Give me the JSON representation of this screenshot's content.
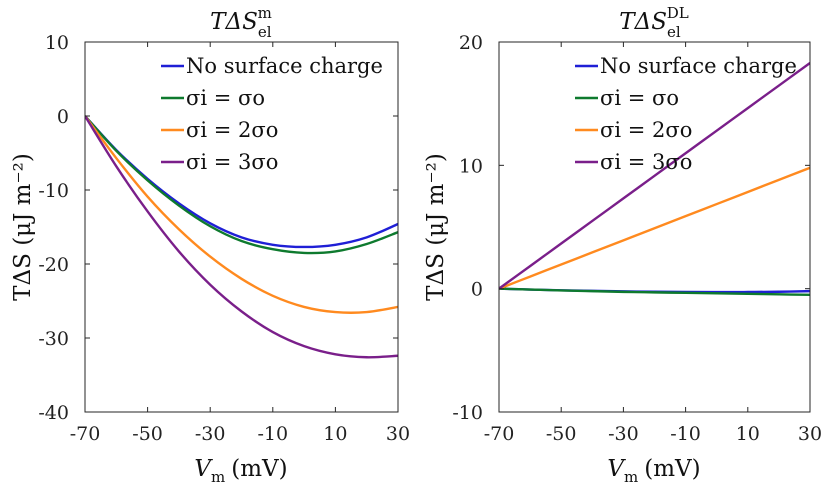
{
  "chart_data": [
    {
      "type": "line",
      "title": "TΔS_el^m",
      "title_main": "TΔS",
      "title_sub": "el",
      "title_sup": "m",
      "xlabel": "V_m (mV)",
      "xlabel_main": "V",
      "xlabel_sub": "m",
      "xlabel_unit": "(mV)",
      "ylabel": "TΔS (μJ m⁻²)",
      "xlim": [
        -70,
        30
      ],
      "ylim": [
        -40,
        10
      ],
      "x_ticks": [
        "-70",
        "-50",
        "-30",
        "-10",
        "10",
        "30"
      ],
      "y_ticks": [
        "10",
        "0",
        "-10",
        "-20",
        "-30",
        "-40"
      ],
      "legend_position": "top-right",
      "x": [
        -70,
        -60,
        -50,
        -40,
        -30,
        -20,
        -10,
        0,
        10,
        20,
        30
      ],
      "series": [
        {
          "name": "No surface charge",
          "color": "#1f1fd6",
          "values": [
            0,
            -4.6,
            -8.5,
            -11.8,
            -14.5,
            -16.4,
            -17.4,
            -17.7,
            -17.4,
            -16.4,
            -14.6
          ]
        },
        {
          "name": "σi = σo",
          "color": "#0e7a2e",
          "values": [
            0,
            -4.7,
            -8.7,
            -12.1,
            -14.9,
            -16.9,
            -18.0,
            -18.5,
            -18.3,
            -17.3,
            -15.7
          ]
        },
        {
          "name": "σi = 2σo",
          "color": "#ff8a1f",
          "values": [
            0,
            -5.7,
            -10.9,
            -15.3,
            -19.0,
            -22.0,
            -24.3,
            -25.8,
            -26.5,
            -26.5,
            -25.8
          ]
        },
        {
          "name": "σi = 3σo",
          "color": "#7a1f8a",
          "values": [
            0,
            -6.8,
            -12.9,
            -18.3,
            -22.8,
            -26.4,
            -29.2,
            -31.1,
            -32.2,
            -32.6,
            -32.4
          ]
        }
      ]
    },
    {
      "type": "line",
      "title": "TΔS_el^DL",
      "title_main": "TΔS",
      "title_sub": "el",
      "title_sup": "DL",
      "xlabel": "V_m (mV)",
      "xlabel_main": "V",
      "xlabel_sub": "m",
      "xlabel_unit": "(mV)",
      "ylabel": "TΔS (μJ m⁻²)",
      "xlim": [
        -70,
        30
      ],
      "ylim": [
        -10,
        20
      ],
      "x_ticks": [
        "-70",
        "-50",
        "-30",
        "-10",
        "10",
        "30"
      ],
      "y_ticks": [
        "20",
        "10",
        "0",
        "-10"
      ],
      "legend_position": "top-right",
      "x": [
        -70,
        -60,
        -50,
        -40,
        -30,
        -20,
        -10,
        0,
        10,
        20,
        30
      ],
      "series": [
        {
          "name": "No surface charge",
          "color": "#1f1fd6",
          "values": [
            0,
            -0.07,
            -0.13,
            -0.18,
            -0.22,
            -0.25,
            -0.27,
            -0.28,
            -0.27,
            -0.25,
            -0.2
          ]
        },
        {
          "name": "σi = σo",
          "color": "#0e7a2e",
          "values": [
            0,
            -0.07,
            -0.14,
            -0.2,
            -0.26,
            -0.3,
            -0.34,
            -0.38,
            -0.42,
            -0.46,
            -0.5
          ]
        },
        {
          "name": "σi = 2σo",
          "color": "#ff8a1f",
          "values": [
            0,
            0.98,
            1.96,
            2.94,
            3.92,
            4.9,
            5.88,
            6.86,
            7.84,
            8.82,
            9.8
          ]
        },
        {
          "name": "σi = 3σo",
          "color": "#7a1f8a",
          "values": [
            0,
            1.83,
            3.66,
            5.49,
            7.32,
            9.15,
            10.98,
            12.81,
            14.64,
            16.47,
            18.3
          ]
        }
      ]
    }
  ]
}
